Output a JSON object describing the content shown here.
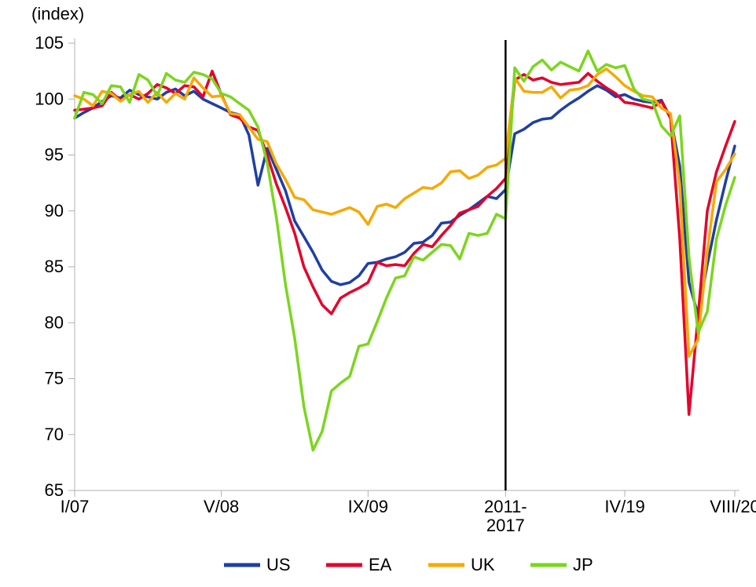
{
  "chart": {
    "type": "line",
    "ylabel": "(index)",
    "label_fontsize": 22,
    "tick_fontsize": 22,
    "background_color": "#ffffff",
    "axis_color": "#b0b0b0",
    "axis_width": 1,
    "divider_color": "#000000",
    "divider_width": 2.5,
    "ylim": [
      65,
      105
    ],
    "ytick_step": 5,
    "yticks": [
      65,
      70,
      75,
      80,
      85,
      90,
      95,
      100,
      105
    ],
    "x_index_range": [
      0,
      72
    ],
    "x_divider_index": 47,
    "x_ticks": [
      {
        "i": 0,
        "label": "I/07"
      },
      {
        "i": 16,
        "label": "V/08"
      },
      {
        "i": 32,
        "label": "IX/09"
      },
      {
        "i": 47,
        "label": "2011-\n2017"
      },
      {
        "i": 60,
        "label": "IV/19"
      },
      {
        "i": 72,
        "label": "VIII/20"
      }
    ],
    "series": [
      {
        "name": "US",
        "color": "#1f3fa5",
        "width": 3.5,
        "data": [
          98.3,
          98.8,
          99.2,
          99.8,
          100.3,
          100.1,
          100.8,
          100.4,
          100.2,
          100.0,
          100.6,
          100.9,
          100.3,
          100.7,
          100.0,
          99.6,
          99.2,
          98.8,
          98.6,
          96.8,
          92.3,
          95.6,
          93.7,
          91.8,
          89.1,
          87.7,
          86.3,
          84.7,
          83.7,
          83.4,
          83.6,
          84.2,
          85.3,
          85.4,
          85.7,
          85.9,
          86.3,
          87.1,
          87.2,
          87.8,
          88.9,
          89.0,
          89.6,
          90.1,
          90.7,
          91.3,
          91.1,
          91.9,
          96.9,
          97.3,
          97.9,
          98.2,
          98.3,
          99.0,
          99.6,
          100.1,
          100.7,
          101.2,
          100.8,
          100.2,
          100.4,
          100.0,
          99.8,
          99.7,
          99.9,
          98.3,
          94.0,
          83.6,
          80.7,
          85.2,
          89.2,
          92.6,
          95.8
        ]
      },
      {
        "name": "EA",
        "color": "#e4002b",
        "width": 3.5,
        "data": [
          99.0,
          99.1,
          99.2,
          99.4,
          100.6,
          99.9,
          100.4,
          100.0,
          100.5,
          101.3,
          101.0,
          100.5,
          101.2,
          101.1,
          100.2,
          102.5,
          100.4,
          98.6,
          98.3,
          97.5,
          97.2,
          95.0,
          92.4,
          90.3,
          88.0,
          85.0,
          83.2,
          81.6,
          80.8,
          82.2,
          82.7,
          83.1,
          83.6,
          85.4,
          85.1,
          85.2,
          85.1,
          86.2,
          87.0,
          86.8,
          87.8,
          88.7,
          89.8,
          90.1,
          90.4,
          91.3,
          92.0,
          92.9,
          101.7,
          102.2,
          101.7,
          101.9,
          101.5,
          101.3,
          101.4,
          101.5,
          102.3,
          101.6,
          101.0,
          100.5,
          99.7,
          99.6,
          99.4,
          99.2,
          99.8,
          98.3,
          87.5,
          71.8,
          80.6,
          90.0,
          93.5,
          95.8,
          98.0
        ]
      },
      {
        "name": "UK",
        "color": "#f6a900",
        "width": 3.5,
        "data": [
          100.3,
          100.0,
          99.4,
          100.7,
          100.5,
          99.8,
          100.4,
          100.7,
          99.7,
          100.6,
          99.7,
          100.5,
          100.0,
          101.9,
          101.0,
          100.2,
          100.3,
          98.7,
          98.6,
          97.5,
          96.4,
          96.2,
          94.2,
          92.8,
          91.2,
          91.0,
          90.1,
          89.9,
          89.7,
          90.0,
          90.3,
          89.9,
          88.8,
          90.4,
          90.6,
          90.3,
          91.1,
          91.6,
          92.1,
          92.0,
          92.5,
          93.5,
          93.6,
          92.9,
          93.2,
          93.9,
          94.1,
          94.7,
          101.9,
          100.7,
          100.6,
          100.6,
          101.1,
          100.1,
          100.8,
          100.9,
          101.2,
          102.2,
          102.7,
          102.0,
          101.2,
          100.7,
          100.3,
          100.2,
          99.2,
          98.7,
          92.3,
          77.0,
          78.5,
          86.4,
          92.6,
          93.7,
          95.1
        ]
      },
      {
        "name": "JP",
        "color": "#7bd61d",
        "width": 3.5,
        "data": [
          98.3,
          100.6,
          100.4,
          99.6,
          101.2,
          101.1,
          99.7,
          102.2,
          101.7,
          100.3,
          102.3,
          101.7,
          101.5,
          102.4,
          102.2,
          101.8,
          100.5,
          100.2,
          99.6,
          99.0,
          97.5,
          94.3,
          89.4,
          83.4,
          78.6,
          72.5,
          68.6,
          70.3,
          73.9,
          74.6,
          75.2,
          77.9,
          78.1,
          80.1,
          82.2,
          84.0,
          84.2,
          85.9,
          85.6,
          86.3,
          87.0,
          86.9,
          85.7,
          88.0,
          87.8,
          88.0,
          89.7,
          89.3,
          102.8,
          101.6,
          102.9,
          103.5,
          102.6,
          103.3,
          102.9,
          102.5,
          104.3,
          102.5,
          103.1,
          102.8,
          103.0,
          100.9,
          100.0,
          99.8,
          97.6,
          96.7,
          98.5,
          85.9,
          79.1,
          81.0,
          87.5,
          90.5,
          93.0
        ]
      }
    ],
    "legend": {
      "swatch_width": 46,
      "swatch_height": 4,
      "items": [
        "US",
        "EA",
        "UK",
        "JP"
      ]
    }
  }
}
